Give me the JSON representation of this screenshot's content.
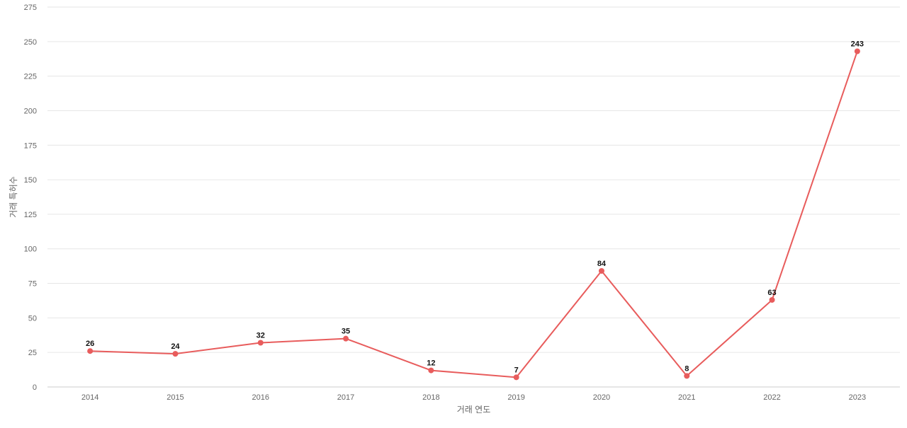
{
  "chart_data": {
    "type": "line",
    "xlabel": "거래 연도",
    "ylabel": "거래 특허수",
    "categories": [
      "2014",
      "2015",
      "2016",
      "2017",
      "2018",
      "2019",
      "2020",
      "2021",
      "2022",
      "2023"
    ],
    "series": [
      {
        "values": [
          26,
          24,
          32,
          35,
          12,
          7,
          84,
          8,
          63,
          243
        ],
        "color": "#e85c5c"
      }
    ],
    "ylim": [
      0,
      275
    ],
    "yticks": [
      0,
      25,
      50,
      75,
      100,
      125,
      150,
      175,
      200,
      225,
      250,
      275
    ],
    "grid": true,
    "data_labels": true
  }
}
